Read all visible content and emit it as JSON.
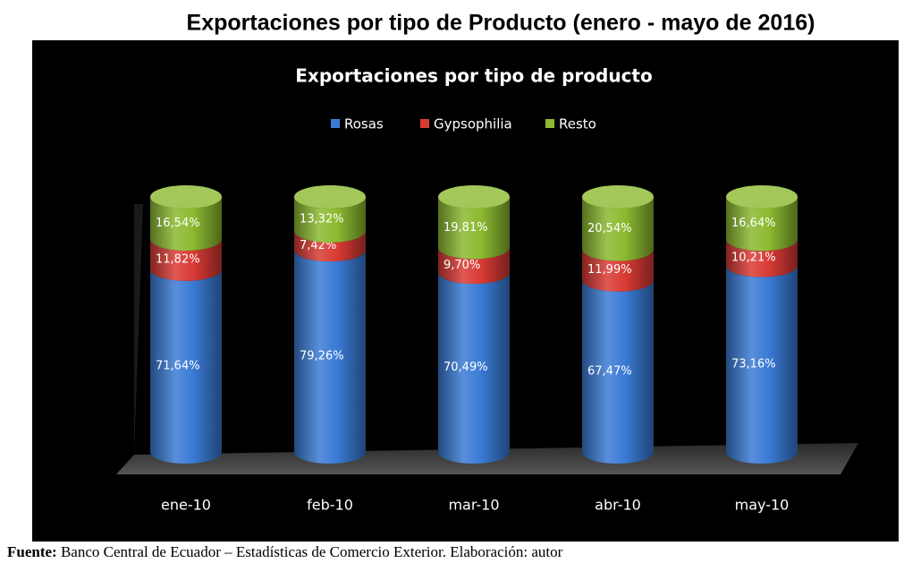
{
  "chart_data": {
    "type": "stacked_cylinder",
    "page_title": "Exportaciones por tipo de Producto (enero - mayo de 2016)",
    "title": "Exportaciones por tipo de producto",
    "categories": [
      "ene-10",
      "feb-10",
      "mar-10",
      "abr-10",
      "may-10"
    ],
    "series": [
      {
        "name": "Rosas",
        "color": "#3a7bd5",
        "values": [
          71.64,
          79.26,
          70.49,
          67.47,
          73.16
        ],
        "value_labels": [
          "71,64%",
          "79,26%",
          "70,49%",
          "67,47%",
          "73,16%"
        ]
      },
      {
        "name": "Gypsophilia",
        "color": "#d93a34",
        "values": [
          11.82,
          7.42,
          9.7,
          11.99,
          10.21
        ],
        "value_labels": [
          "11,82%",
          "7,42%",
          "9,70%",
          "11,99%",
          "10,21%"
        ]
      },
      {
        "name": "Resto",
        "color": "#8cba30",
        "values": [
          16.54,
          13.32,
          19.81,
          20.54,
          16.64
        ],
        "value_labels": [
          "16,54%",
          "13,32%",
          "19,81%",
          "20,54%",
          "16,64%"
        ]
      }
    ],
    "legend": "top",
    "source": {
      "label": "Fuente:",
      "text": "Banco Central de Ecuador – Estadísticas de Comercio Exterior. Elaboración: autor"
    }
  }
}
